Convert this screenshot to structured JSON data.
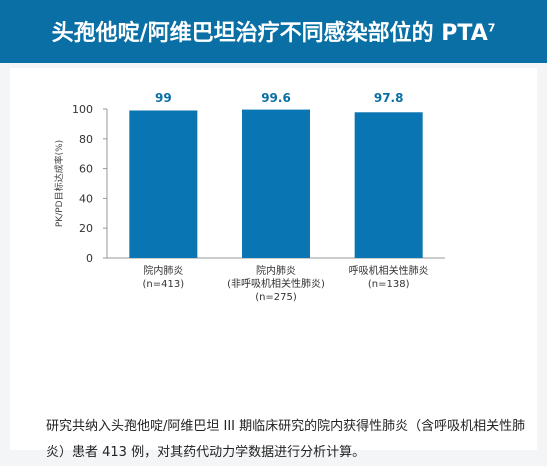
{
  "page": {
    "title": "头孢他啶/阿维巴坦治疗不同感染部位的 PTA",
    "title_sup": "7",
    "description": "研究共纳入头孢他啶/阿维巴坦 III 期临床研究的院内获得性肺炎（含呼吸机相关性肺炎）患者 413 例，对其药代动力学数据进行分析计算。"
  },
  "colors": {
    "header": "#0a6fa5",
    "bar": "#0a75b3",
    "value_label": "#0a6fa5"
  },
  "chart_data": {
    "type": "bar",
    "categories": [
      [
        "院内肺炎",
        "(n=413)"
      ],
      [
        "院内肺炎",
        "(非呼吸机相关性肺炎)",
        "(n=275)"
      ],
      [
        "呼吸机相关性肺炎",
        "(n=138)"
      ]
    ],
    "values": [
      99,
      99.6,
      97.8
    ],
    "value_labels": [
      "99",
      "99.6",
      "97.8"
    ],
    "title": "",
    "xlabel": "",
    "ylabel": "PK/PD目标达成率(%)",
    "ylim": [
      0,
      100
    ],
    "yticks": [
      0,
      20,
      40,
      60,
      80,
      100
    ],
    "grid": false
  }
}
